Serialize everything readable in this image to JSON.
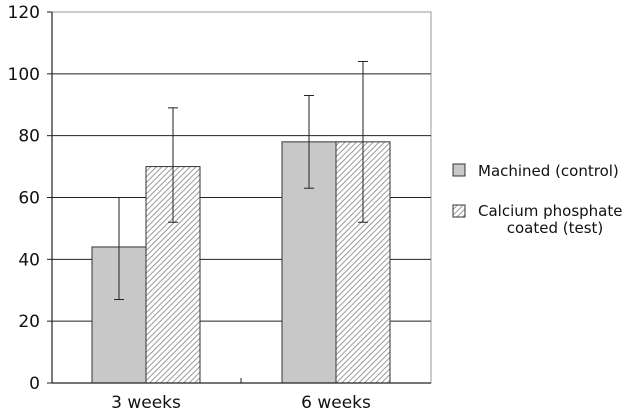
{
  "chart_data": {
    "type": "bar",
    "title": "",
    "xlabel": "",
    "ylabel": "",
    "categories": [
      "3 weeks",
      "6 weeks"
    ],
    "ylim": [
      0,
      120
    ],
    "yticks": [
      "0",
      "20",
      "40",
      "60",
      "80",
      "100",
      "120"
    ],
    "grid": true,
    "legend_position": "right",
    "series": [
      {
        "name": "Machined (control)",
        "values": [
          44,
          78
        ],
        "error_low": [
          27,
          63
        ],
        "error_high": [
          60,
          93
        ],
        "fill": "solid",
        "color": "#c8c8c8"
      },
      {
        "name": "Calcium phosphate coated (test)",
        "name_lines": [
          "Calcium phosphate",
          "coated (test)"
        ],
        "values": [
          70,
          78
        ],
        "error_low": [
          52,
          52
        ],
        "error_high": [
          89,
          104
        ],
        "fill": "hatched",
        "color": "#bdbdbd"
      }
    ]
  }
}
